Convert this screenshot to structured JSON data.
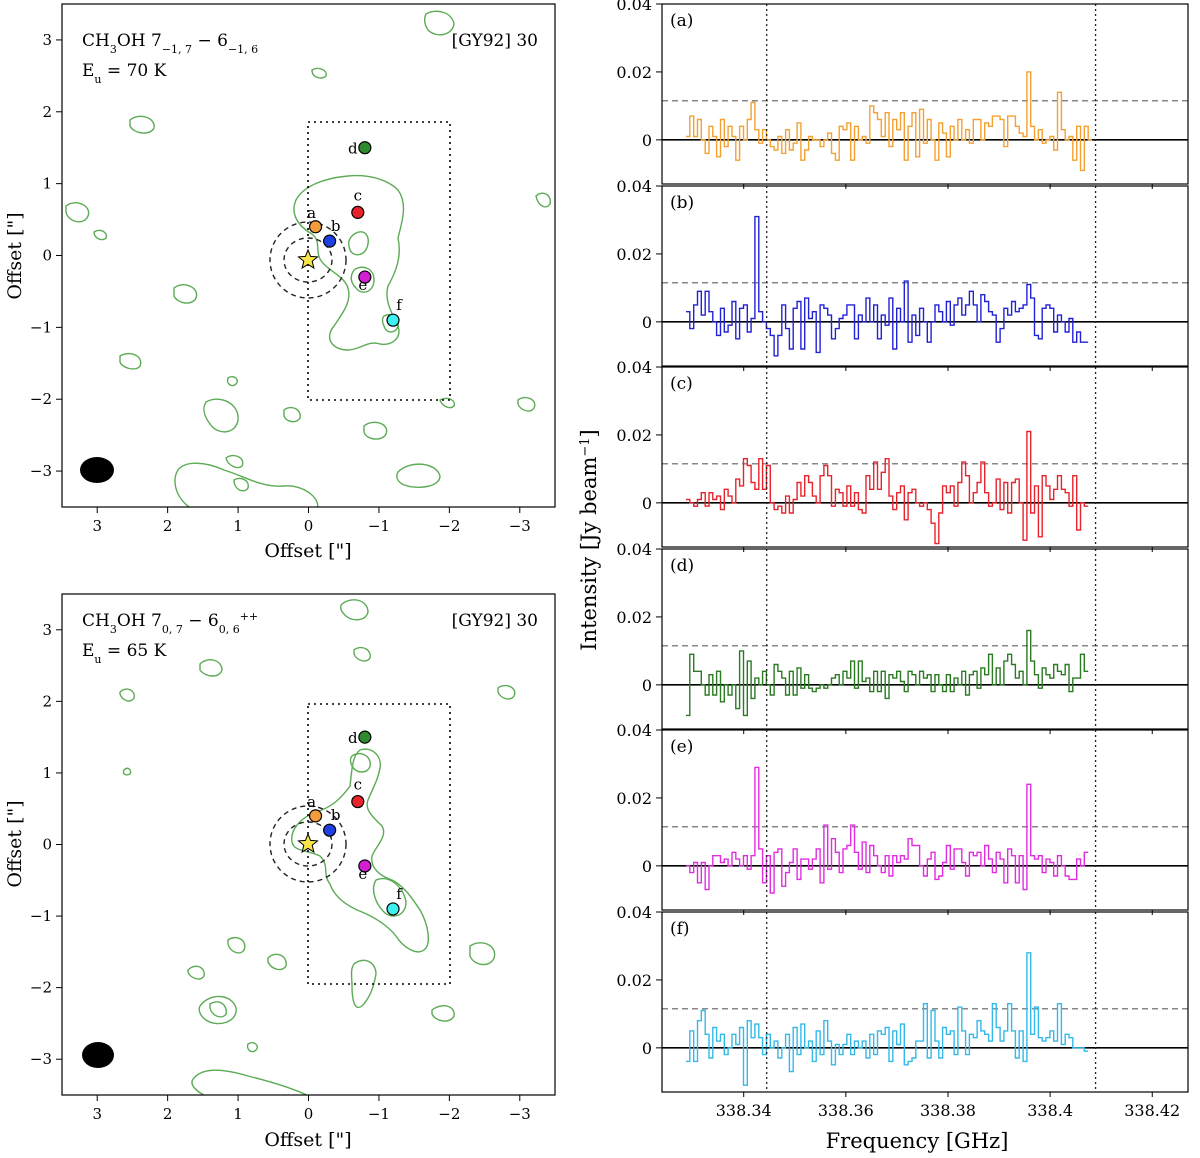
{
  "chart_data": [
    {
      "type": "scatter",
      "panel": "map-top",
      "title": "CH3OH 7(-1,7) - 6(-1,6)",
      "title_parts": {
        "base": "CH",
        "sub1": "3",
        "mid": "OH 7",
        "sub2": "−1, 7",
        "sep": " − 6",
        "sub3": "−1, 6",
        "sup": ""
      },
      "energy": {
        "prefix": "E",
        "sub": "u",
        "value": " = 70 K"
      },
      "source": "[GY92] 30",
      "xlabel": "Offset [\"]",
      "ylabel": "Offset [\"]",
      "xlim": [
        3.5,
        -3.5
      ],
      "ylim": [
        -3.5,
        3.5
      ],
      "xticks": [
        3,
        2,
        1,
        0,
        -1,
        -2,
        -3
      ],
      "yticks": [
        -3,
        -2,
        -1,
        0,
        1,
        2,
        3
      ],
      "points": [
        {
          "label": "a",
          "x": -0.1,
          "y": 0.4,
          "color": "#f39c3b"
        },
        {
          "label": "b",
          "x": -0.3,
          "y": 0.2,
          "color": "#1f3fe0"
        },
        {
          "label": "c",
          "x": -0.7,
          "y": 0.6,
          "color": "#e8232b"
        },
        {
          "label": "d",
          "x": -0.8,
          "y": 1.5,
          "color": "#2e8b2e"
        },
        {
          "label": "e",
          "x": -0.8,
          "y": -0.3,
          "color": "#d11fd1"
        },
        {
          "label": "f",
          "x": -1.2,
          "y": -0.9,
          "color": "#3ff0f0"
        }
      ],
      "star": {
        "x": 0.0,
        "y": 0.0,
        "color": "#f7e54b"
      },
      "box": {
        "x": [
          0,
          -2
        ],
        "y": [
          -2,
          2
        ]
      },
      "beam": {
        "x": 3.0,
        "y": -3.0
      }
    },
    {
      "type": "scatter",
      "panel": "map-bottom",
      "title": "CH3OH 7(0,7) - 6(0,6)++",
      "title_parts": {
        "base": "CH",
        "sub1": "3",
        "mid": "OH 7",
        "sub2": "0, 7",
        "sep": " − 6",
        "sub3": "0, 6",
        "sup": "++"
      },
      "energy": {
        "prefix": "E",
        "sub": "u",
        "value": " = 65 K"
      },
      "source": "[GY92] 30",
      "xlabel": "Offset [\"]",
      "ylabel": "Offset [\"]",
      "xlim": [
        3.5,
        -3.5
      ],
      "ylim": [
        -3.5,
        3.5
      ],
      "xticks": [
        3,
        2,
        1,
        0,
        -1,
        -2,
        -3
      ],
      "yticks": [
        -3,
        -2,
        -1,
        0,
        1,
        2,
        3
      ],
      "points": [
        {
          "label": "a",
          "x": -0.1,
          "y": 0.4,
          "color": "#f39c3b"
        },
        {
          "label": "b",
          "x": -0.3,
          "y": 0.2,
          "color": "#1f3fe0"
        },
        {
          "label": "c",
          "x": -0.7,
          "y": 0.6,
          "color": "#e8232b"
        },
        {
          "label": "d",
          "x": -0.8,
          "y": 1.5,
          "color": "#2e8b2e"
        },
        {
          "label": "e",
          "x": -0.8,
          "y": -0.3,
          "color": "#d11fd1"
        },
        {
          "label": "f",
          "x": -1.2,
          "y": -0.9,
          "color": "#3ff0f0"
        }
      ],
      "star": {
        "x": 0.0,
        "y": 0.0,
        "color": "#f7e54b"
      },
      "box": {
        "x": [
          0,
          -2
        ],
        "y": [
          -2,
          2
        ]
      },
      "beam": {
        "x": 3.0,
        "y": -3.0
      }
    },
    {
      "type": "line",
      "panel": "spectra",
      "xlabel": "Frequency [GHz]",
      "ylabel": "Intensity [Jy beam−1]",
      "ylabel_parts": {
        "main": "Intensity [Jy beam",
        "sup": "−1",
        "close": "]"
      },
      "xlim": [
        338.324,
        338.427
      ],
      "ylim": [
        -0.013,
        0.04
      ],
      "xticks": [
        "338.34",
        "338.36",
        "338.38",
        "338.4",
        "338.42"
      ],
      "xtick_values": [
        338.34,
        338.36,
        338.38,
        338.4,
        338.42
      ],
      "yticks": [
        "0",
        "0.02",
        "0.04"
      ],
      "ytick_values": [
        0,
        0.02,
        0.04
      ],
      "threshold": 0.0115,
      "vlines": [
        338.3445,
        338.4089
      ],
      "x_start": 338.3287,
      "x_step": 0.00075,
      "series": [
        {
          "name": "(a)",
          "color": "#f4a132",
          "values": [
            0.001,
            0.007,
            0.001,
            0.006,
            0.0,
            -0.004,
            0.004,
            0.001,
            -0.005,
            0.006,
            -0.002,
            0.004,
            0.001,
            -0.006,
            0.004,
            0.0,
            0.006,
            0.011,
            0.003,
            -0.001,
            0.003,
            0.0,
            -0.002,
            -0.003,
            0.001,
            -0.004,
            0.003,
            -0.003,
            -0.001,
            0.005,
            -0.006,
            -0.003,
            0.001,
            0.0,
            0.0,
            -0.002,
            0.0,
            0.002,
            -0.004,
            -0.006,
            0.004,
            0.003,
            0.005,
            -0.006,
            0.004,
            0.0,
            0.001,
            -0.001,
            0.01,
            0.008,
            0.006,
            0.001,
            0.008,
            -0.002,
            0.006,
            0.003,
            0.008,
            -0.006,
            0.004,
            0.008,
            -0.005,
            0.009,
            -0.001,
            0.006,
            0.0,
            -0.006,
            0.005,
            0.002,
            -0.005,
            0.004,
            0.0,
            0.006,
            0.0,
            0.003,
            -0.001,
            0.006,
            0.006,
            0.0,
            0.005,
            0.004,
            0.007,
            0.007,
            0.006,
            -0.002,
            0.007,
            0.007,
            0.004,
            0.002,
            0.001,
            0.02,
            0.004,
            0.0,
            0.003,
            -0.001,
            0.0,
            0.001,
            -0.003,
            0.014,
            0.003,
            0.0,
            0.001,
            -0.006,
            0.004,
            -0.009,
            0.004,
            0.0
          ]
        },
        {
          "name": "(b)",
          "color": "#2121d8",
          "values": [
            0.003,
            -0.002,
            0.005,
            0.009,
            0.002,
            0.009,
            0.003,
            0.0,
            -0.004,
            0.004,
            -0.003,
            -0.001,
            0.006,
            -0.005,
            0.004,
            0.005,
            -0.003,
            0.001,
            0.031,
            0.003,
            0.0,
            -0.002,
            -0.004,
            -0.01,
            -0.004,
            0.005,
            -0.002,
            -0.008,
            0.004,
            0.006,
            -0.008,
            0.007,
            0.001,
            0.003,
            -0.009,
            0.005,
            0.004,
            0.002,
            -0.005,
            -0.002,
            0.001,
            0.002,
            0.005,
            0.005,
            -0.005,
            0.002,
            0.0,
            0.007,
            0.0,
            0.005,
            -0.005,
            0.002,
            -0.001,
            0.007,
            -0.008,
            0.004,
            0.0,
            0.012,
            -0.006,
            0.002,
            -0.004,
            0.004,
            0.0,
            -0.006,
            0.0,
            0.005,
            0.003,
            0.0,
            0.006,
            -0.001,
            0.005,
            0.007,
            0.002,
            0.005,
            0.009,
            0.005,
            0.0,
            0.008,
            0.006,
            0.003,
            0.002,
            -0.006,
            -0.002,
            0.004,
            0.002,
            0.006,
            0.003,
            0.004,
            0.005,
            0.011,
            0.007,
            -0.004,
            -0.005,
            0.004,
            0.005,
            0.004,
            -0.003,
            0.002,
            0.0,
            -0.003,
            0.001,
            -0.006,
            -0.003,
            -0.006,
            -0.006
          ]
        },
        {
          "name": "(c)",
          "color": "#e8232b",
          "values": [
            0.001,
            0.0,
            -0.001,
            0.001,
            0.003,
            -0.001,
            0.003,
            0.001,
            0.002,
            -0.002,
            0.004,
            0.002,
            0.0,
            0.007,
            0.005,
            0.013,
            0.011,
            0.006,
            0.004,
            0.013,
            0.004,
            0.011,
            0.0,
            -0.002,
            -0.001,
            -0.003,
            0.002,
            -0.003,
            0.001,
            0.006,
            0.002,
            0.008,
            0.006,
            0.002,
            0.0,
            0.008,
            0.011,
            0.008,
            -0.001,
            0.004,
            0.003,
            -0.001,
            0.005,
            -0.001,
            0.003,
            -0.002,
            -0.003,
            0.008,
            0.004,
            0.012,
            0.004,
            0.009,
            0.013,
            0.002,
            -0.002,
            0.003,
            0.005,
            -0.005,
            0.003,
            0.004,
            0.0,
            -0.001,
            0.0,
            -0.002,
            -0.006,
            -0.012,
            -0.003,
            0.005,
            0.003,
            0.005,
            -0.001,
            0.006,
            0.012,
            0.008,
            0.0,
            0.003,
            0.006,
            0.012,
            0.003,
            -0.001,
            0.0,
            0.007,
            -0.002,
            0.006,
            -0.003,
            0.006,
            0.007,
            0.0,
            -0.011,
            0.021,
            -0.003,
            0.005,
            -0.01,
            0.008,
            0.005,
            0.001,
            0.004,
            0.008,
            0.004,
            0.003,
            -0.001,
            0.008,
            -0.008,
            0.0,
            -0.001
          ]
        },
        {
          "name": "(d)",
          "color": "#2a7a22",
          "values": [
            -0.009,
            0.009,
            0.004,
            0.004,
            0.0,
            -0.003,
            0.003,
            -0.003,
            0.004,
            -0.005,
            0.0,
            -0.003,
            0.0,
            -0.007,
            0.01,
            -0.009,
            0.007,
            -0.004,
            0.002,
            0.0,
            0.004,
            0.0,
            -0.003,
            0.006,
            0.004,
            0.002,
            -0.003,
            0.004,
            -0.003,
            0.005,
            -0.001,
            0.003,
            -0.001,
            -0.002,
            -0.001,
            0.0,
            -0.001,
            0.0,
            0.002,
            0.003,
            0.0,
            0.004,
            0.002,
            0.007,
            -0.001,
            0.007,
            0.001,
            0.002,
            -0.002,
            0.004,
            -0.002,
            0.004,
            -0.004,
            0.003,
            0.002,
            0.004,
            0.001,
            -0.002,
            0.004,
            0.003,
            0.0,
            0.004,
            0.002,
            0.003,
            -0.002,
            0.003,
            0.0,
            -0.002,
            0.003,
            -0.002,
            0.002,
            0.0,
            0.004,
            -0.003,
            0.003,
            0.004,
            -0.001,
            0.005,
            0.003,
            0.009,
            0.0,
            0.005,
            0.0,
            0.007,
            0.009,
            0.006,
            0.002,
            0.004,
            0.0,
            0.016,
            0.007,
            0.003,
            -0.001,
            0.005,
            0.003,
            0.002,
            0.006,
            0.004,
            0.003,
            0.006,
            -0.002,
            0.002,
            0.002,
            0.009,
            0.004
          ]
        },
        {
          "name": "(e)",
          "color": "#e12ce1",
          "values": [
            0.0,
            -0.002,
            0.001,
            -0.005,
            0.001,
            -0.007,
            0.0,
            0.003,
            0.003,
            0.001,
            0.002,
            0.0,
            0.004,
            0.002,
            0.0,
            0.003,
            -0.001,
            0.003,
            0.029,
            0.005,
            -0.005,
            0.003,
            -0.008,
            0.004,
            0.005,
            -0.006,
            -0.002,
            0.001,
            0.005,
            -0.004,
            0.002,
            0.002,
            -0.001,
            0.002,
            0.005,
            -0.005,
            0.012,
            -0.001,
            0.008,
            0.004,
            -0.002,
            0.005,
            0.006,
            0.012,
            0.004,
            -0.001,
            0.007,
            -0.002,
            0.006,
            0.003,
            0.0,
            -0.002,
            0.003,
            -0.003,
            0.003,
            0.001,
            0.003,
            0.002,
            0.008,
            0.006,
            0.006,
            0.0,
            -0.003,
            0.002,
            0.004,
            -0.004,
            -0.003,
            0.001,
            0.006,
            -0.001,
            0.005,
            0.005,
            0.001,
            -0.003,
            0.004,
            0.003,
            0.004,
            0.0,
            0.006,
            0.002,
            -0.002,
            0.004,
            0.002,
            -0.005,
            0.005,
            0.003,
            -0.005,
            0.003,
            -0.007,
            0.024,
            0.003,
            0.002,
            0.003,
            -0.002,
            0.002,
            0.001,
            -0.003,
            0.003,
            0.0,
            -0.003,
            -0.004,
            -0.004,
            0.002,
            0.0,
            0.004
          ]
        },
        {
          "name": "(f)",
          "color": "#33b9ea",
          "values": [
            -0.004,
            0.005,
            -0.004,
            0.008,
            0.011,
            0.004,
            -0.003,
            0.006,
            0.002,
            0.004,
            -0.002,
            0.0,
            0.004,
            0.001,
            0.006,
            -0.011,
            0.008,
            0.003,
            0.007,
            0.003,
            -0.002,
            0.004,
            0.0,
            0.002,
            -0.003,
            0.0,
            0.004,
            -0.007,
            0.006,
            -0.002,
            0.007,
            0.0,
            0.002,
            -0.004,
            0.005,
            -0.002,
            0.008,
            0.002,
            -0.005,
            0.001,
            -0.002,
            0.001,
            0.004,
            -0.002,
            0.002,
            0.0,
            0.002,
            -0.003,
            0.004,
            -0.002,
            0.005,
            0.004,
            0.006,
            -0.004,
            0.005,
            0.001,
            0.007,
            -0.005,
            -0.004,
            -0.003,
            0.002,
            0.002,
            0.013,
            -0.003,
            0.011,
            0.002,
            -0.003,
            0.006,
            0.004,
            0.005,
            -0.002,
            0.012,
            0.005,
            -0.002,
            0.004,
            0.003,
            0.008,
            0.005,
            0.004,
            0.002,
            0.013,
            0.006,
            0.002,
            0.005,
            0.013,
            0.005,
            -0.003,
            0.005,
            -0.004,
            0.028,
            0.004,
            0.012,
            0.003,
            0.002,
            0.003,
            0.005,
            0.002,
            0.013,
            0.001,
            0.004,
            0.003,
            0.0,
            0.0,
            0.0,
            -0.001
          ]
        }
      ]
    }
  ]
}
